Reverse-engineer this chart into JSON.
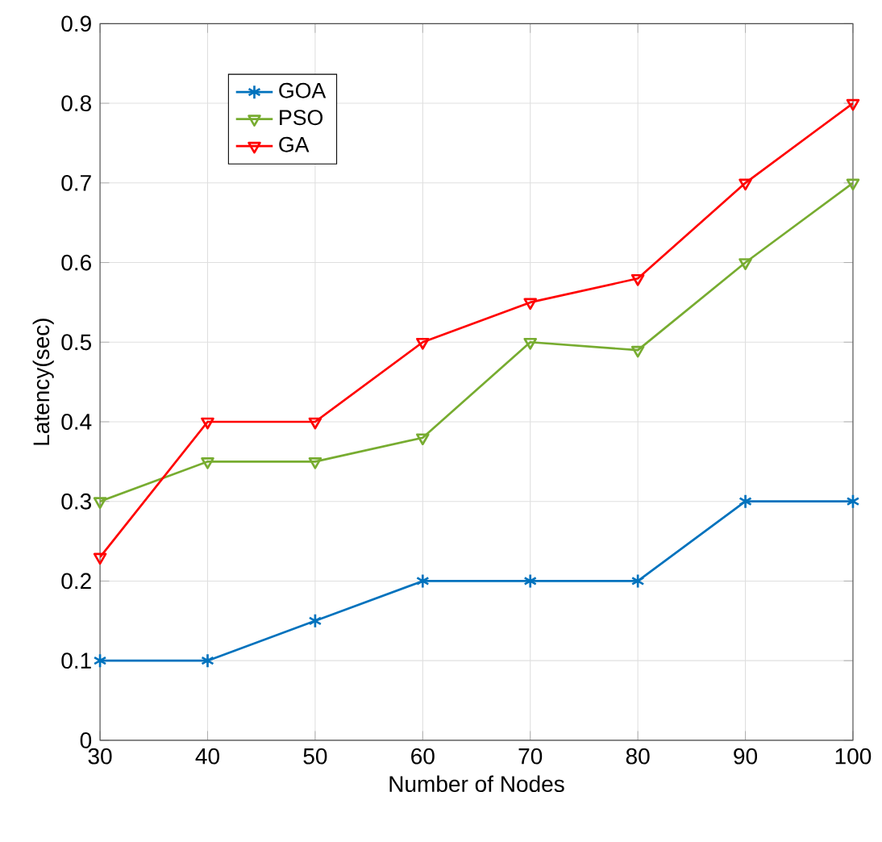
{
  "chart_data": {
    "type": "line",
    "xlabel": "Number of Nodes",
    "ylabel": "Latency(sec)",
    "x": [
      30,
      40,
      50,
      60,
      70,
      80,
      90,
      100
    ],
    "series": [
      {
        "name": "GOA",
        "color": "#0072bd",
        "marker": "cross",
        "values": [
          0.1,
          0.1,
          0.15,
          0.2,
          0.2,
          0.2,
          0.3,
          0.3
        ]
      },
      {
        "name": "PSO",
        "color": "#77ac30",
        "marker": "triangle",
        "values": [
          0.3,
          0.35,
          0.35,
          0.38,
          0.5,
          0.49,
          0.6,
          0.7
        ]
      },
      {
        "name": "GA",
        "color": "#ff0000",
        "marker": "triangle",
        "values": [
          0.23,
          0.4,
          0.4,
          0.5,
          0.55,
          0.58,
          0.7,
          0.8
        ]
      }
    ],
    "xlim": [
      30,
      100
    ],
    "ylim": [
      0,
      0.9
    ],
    "xticks": [
      30,
      40,
      50,
      60,
      70,
      80,
      90,
      100
    ],
    "yticks": [
      0,
      0.1,
      0.2,
      0.3,
      0.4,
      0.5,
      0.6,
      0.7,
      0.8,
      0.9
    ],
    "grid": true,
    "legend": "top left",
    "line_style": "solid"
  }
}
